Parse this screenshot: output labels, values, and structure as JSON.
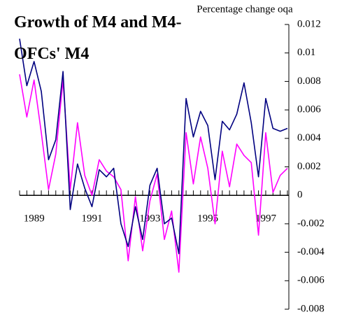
{
  "chart_data": {
    "type": "line",
    "title": "Growth of M4 and M4-OFCs' M4",
    "y_label": "Percentage change oqa",
    "categories": [
      null,
      null,
      "1989",
      null,
      null,
      null,
      null,
      null,
      null,
      null,
      "1991",
      null,
      null,
      null,
      null,
      null,
      null,
      null,
      "1993",
      null,
      null,
      null,
      null,
      null,
      null,
      null,
      "1995",
      null,
      null,
      null,
      null,
      null,
      null,
      null,
      "1997",
      null,
      null,
      null
    ],
    "series": [
      {
        "color": "#000080",
        "values": [
          0.011,
          0.0077,
          0.0094,
          0.0073,
          0.0025,
          0.0039,
          0.0087,
          -0.001,
          0.0022,
          0.0005,
          -0.0008,
          0.0018,
          0.0013,
          0.0019,
          -0.002,
          -0.0036,
          -0.0008,
          -0.0031,
          0.0007,
          0.0019,
          -0.002,
          -0.0016,
          -0.0041,
          0.0068,
          0.0041,
          0.0059,
          0.0049,
          0.0011,
          0.0052,
          0.0046,
          0.0057,
          0.0079,
          0.0051,
          0.0013,
          0.0068,
          0.0047,
          0.0045,
          0.0047
        ]
      },
      {
        "color": "#ff00ff",
        "values": [
          0.0085,
          0.0055,
          0.0081,
          0.0044,
          0.0004,
          0.0029,
          0.0081,
          0.0004,
          0.0051,
          0.0014,
          0.0,
          0.0025,
          0.0017,
          0.0013,
          0.0004,
          -0.0046,
          -0.0001,
          -0.0039,
          -0.0004,
          0.0015,
          -0.0031,
          -0.0011,
          -0.0054,
          0.0044,
          0.0008,
          0.0041,
          0.0019,
          -0.002,
          0.0031,
          0.0006,
          0.0036,
          0.0028,
          0.0023,
          -0.0028,
          0.0044,
          0.0002,
          0.0014,
          0.0019
        ]
      }
    ],
    "ylim": [
      -0.008,
      0.012
    ],
    "yticks": [
      0.012,
      0.01,
      0.008,
      0.006,
      0.004,
      0.002,
      0,
      -0.002,
      -0.004,
      -0.006,
      -0.008
    ],
    "y_axis_side": "right",
    "grid": false
  }
}
